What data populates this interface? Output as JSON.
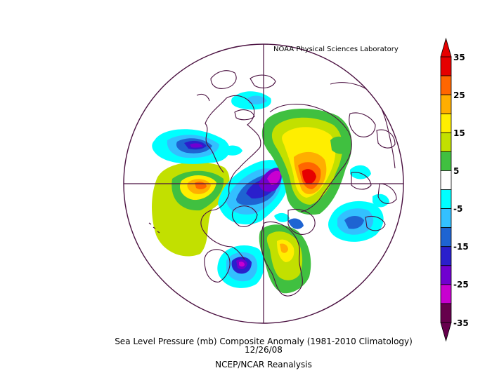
{
  "credit": "NOAA Physical Sciences Laboratory",
  "title": "Sea Level Pressure (mb) Composite Anomaly (1981-2010 Climatology)",
  "date": "12/26/08",
  "source": "NCEP/NCAR Reanalysis",
  "colorbar": {
    "labels": [
      "35",
      "25",
      "15",
      "5",
      "-5",
      "-15",
      "-25",
      "-35"
    ],
    "colors": [
      "#e60000",
      "#ff6600",
      "#ffae00",
      "#ffee00",
      "#c2e000",
      "#40c040",
      "#ffffff",
      "#00ffff",
      "#33c0ff",
      "#1e64d2",
      "#2a1fcc",
      "#7000d0",
      "#c800d0",
      "#66004c"
    ],
    "tip_top_color": "#e60000",
    "tip_bottom_color": "#66004c"
  },
  "map_colors": {
    "land_outline": "#4a1040",
    "grid": "#4a1040"
  }
}
